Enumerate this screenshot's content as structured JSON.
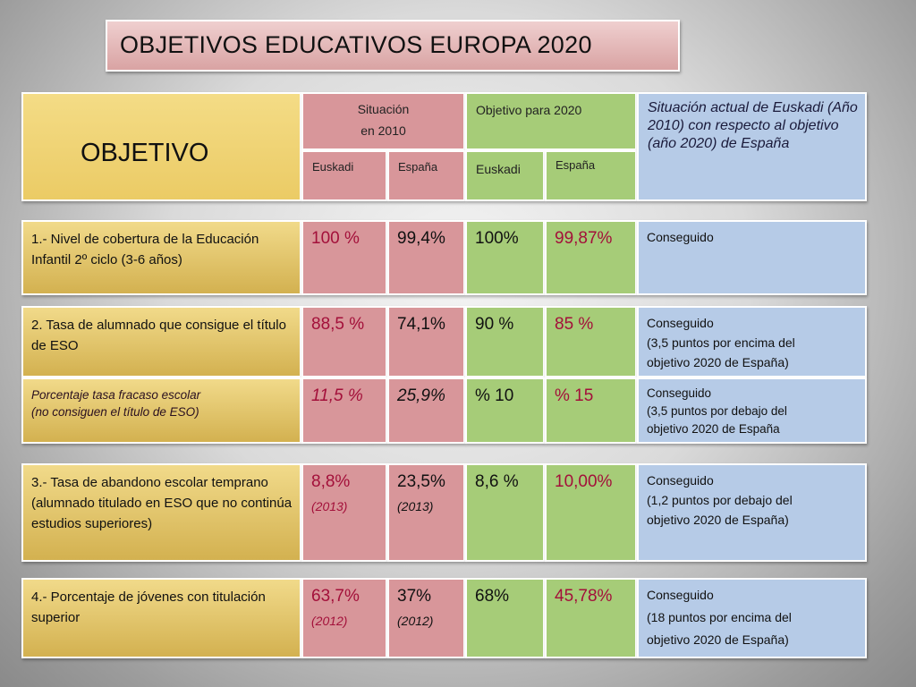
{
  "title": "OBJETIVOS  EDUCATIVOS  EUROPA  2020",
  "header": {
    "objetivo": "OBJETIVO",
    "situacion_2010_line1": "Situación",
    "situacion_2010_line2": "en 2010",
    "objetivo_2020": "Objetivo para 2020",
    "euskadi": "Euskadi",
    "espana": "España",
    "situacion_actual": "Situación actual  de Euskadi  (Año 2010) con respecto al objetivo (año 2020) de España"
  },
  "rows": [
    {
      "label": "1.- Nivel de cobertura de la Educación Infantil   2º ciclo  (3-6 años)",
      "s_euskadi": "100 %",
      "s_espana": "99,4%",
      "o_euskadi": "100%",
      "o_espana": "99,87%",
      "note_line1": "Conseguido",
      "note_line2": "",
      "note_line3": ""
    },
    {
      "label": "2. Tasa de alumnado que consigue el título de ESO",
      "s_euskadi": "88,5 %",
      "s_espana": "74,1%",
      "o_euskadi": "90 %",
      "o_espana": "85 %",
      "note_line1": "Conseguido",
      "note_line2": "(3,5 puntos por encima del",
      "note_line3": "objetivo 2020 de España)"
    },
    {
      "label_line1": "Porcentaje tasa fracaso escolar",
      "label_line2": "(no consiguen el título de ESO)",
      "s_euskadi": "11,5 %",
      "s_espana": "25,9%",
      "o_euskadi": "% 10",
      "o_espana": "% 15",
      "note_line1": "Conseguido",
      "note_line2": "(3,5 puntos por debajo del",
      "note_line3": "objetivo 2020 de España"
    },
    {
      "label": "3.- Tasa de abandono escolar temprano (alumnado titulado en ESO  que no continúa estudios superiores)",
      "s_euskadi": "8,8%",
      "s_euskadi_year": "(2013)",
      "s_espana": "23,5%",
      "s_espana_year": "(2013)",
      "o_euskadi": "8,6 %",
      "o_espana": "10,00%",
      "note_line1": "Conseguido",
      "note_line2": "(1,2 puntos por debajo del",
      "note_line3": "objetivo 2020 de España)"
    },
    {
      "label": "4.- Porcentaje de jóvenes con titulación superior",
      "s_euskadi": "63,7%",
      "s_euskadi_year": "(2012)",
      "s_espana": "37%",
      "s_espana_year": "(2012)",
      "o_euskadi": "68%",
      "o_espana": "45,78%",
      "note_line1": "Conseguido",
      "note_line2": "(18 puntos por encima del",
      "note_line3": "objetivo 2020 de España)"
    }
  ]
}
